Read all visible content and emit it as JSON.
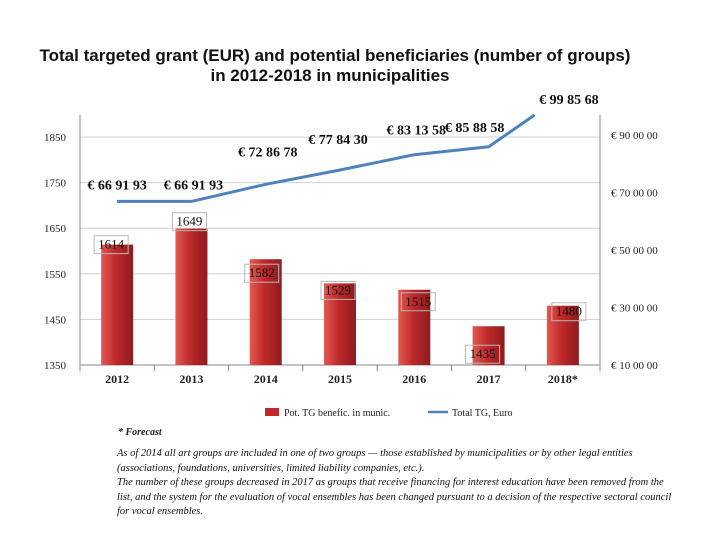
{
  "chart_data": {
    "type": "bar+line",
    "title_line1": "Total targeted grant (EUR) and potential beneficiaries (number of groups)",
    "title_line2": "in 2012-2018 in municipalities",
    "categories": [
      "2012",
      "2013",
      "2014",
      "2015",
      "2016",
      "2017",
      "2018*"
    ],
    "bars": {
      "name": "Pot. TG benefic. in munic.",
      "values": [
        1614,
        1649,
        1582,
        1529,
        1515,
        1435,
        1480
      ],
      "labels": [
        "1614",
        "1649",
        "1582",
        "1529",
        "1515",
        "1435",
        "1480"
      ],
      "color": "#c0292b"
    },
    "line": {
      "name": "Total TG, Euro",
      "values": [
        6691930,
        6691930,
        7286780,
        7784300,
        8313580,
        8588580,
        9985680
      ],
      "labels": [
        "€ 66 91 93",
        "€ 66 91 93",
        "€ 72 86 78",
        "€ 77 84 30",
        "€ 83 13 58",
        "€ 85 88 58",
        "€ 99 85 68"
      ],
      "color": "#4f81bd"
    },
    "y_left": {
      "min": 1350,
      "max": 1850,
      "ticks": [
        1350,
        1450,
        1550,
        1650,
        1750,
        1850
      ],
      "tick_labels": [
        "1350",
        "1450",
        "1550",
        "1650",
        "1750",
        "1850"
      ]
    },
    "y_right": {
      "min": 1000000,
      "max": 9000000,
      "ticks": [
        1000000,
        3000000,
        5000000,
        7000000,
        9000000
      ],
      "tick_labels": [
        "€ 10 00 00",
        "€ 30 00 00",
        "€ 50 00 00",
        "€ 70 00 00",
        "€ 90 00 00"
      ]
    },
    "forecast_note": "* Forecast"
  },
  "caption": {
    "paragraph1": "As of 2014 all art groups are included in one of two groups — those established by municipalities or by other legal entities (associations, foundations, universities, limited liability companies, etc.).",
    "paragraph2": "The number of these groups decreased in 2017 as groups that receive financing for interest education have been removed from the list, and the system for the evaluation of vocal ensembles has been changed pursuant to a decision of the respective sectoral council for vocal ensembles."
  },
  "colors": {
    "bar": "#c0292b",
    "line": "#4f81bd",
    "grid": "#d0d0d0"
  }
}
